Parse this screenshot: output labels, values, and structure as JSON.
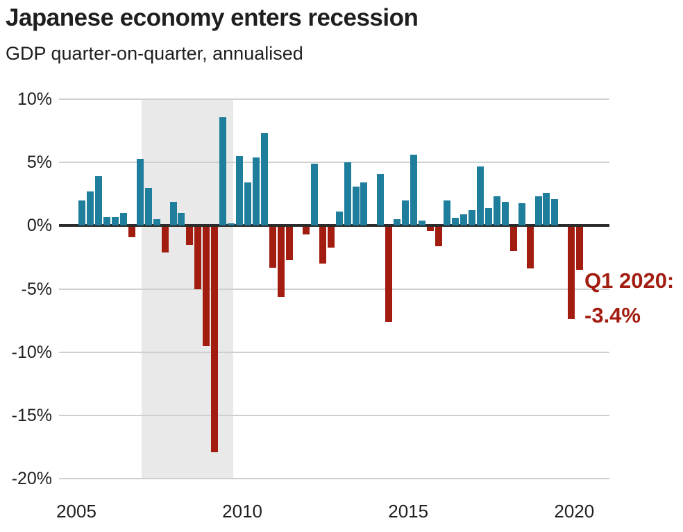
{
  "header": {
    "title": "Japanese economy enters recession",
    "subtitle": "GDP quarter-on-quarter, annualised"
  },
  "annotation": {
    "line1": "Q1 2020:",
    "line2": "-3.4%"
  },
  "colors": {
    "positive_bar": "#1e7e9c",
    "negative_bar": "#a31c10",
    "annotation_text": "#a31c10",
    "recession_band": "#e9e9e9",
    "gridline": "#cfcfcf",
    "zero_line": "#2b2b2b",
    "title_text": "#1f1f1f",
    "axis_text": "#1f1f1f"
  },
  "chart_data": {
    "type": "bar",
    "title": "Japanese economy enters recession",
    "subtitle": "GDP quarter-on-quarter, annualised",
    "unit": "%",
    "ylim": [
      -20,
      10
    ],
    "grid": true,
    "yticks": [
      {
        "value": 10,
        "label": "10%"
      },
      {
        "value": 5,
        "label": "5%"
      },
      {
        "value": 0,
        "label": "0%"
      },
      {
        "value": -5,
        "label": "-5%"
      },
      {
        "value": -10,
        "label": "-10%"
      },
      {
        "value": -15,
        "label": "-15%"
      },
      {
        "value": -20,
        "label": "-20%"
      }
    ],
    "xticks": [
      {
        "year": 2005,
        "label": "2005"
      },
      {
        "year": 2010,
        "label": "2010"
      },
      {
        "year": 2015,
        "label": "2015"
      },
      {
        "year": 2020,
        "label": "2020"
      }
    ],
    "recession_band": {
      "from": "2007 Q1",
      "to": "2009 Q3"
    },
    "quarters": [
      "2005 Q1",
      "2005 Q2",
      "2005 Q3",
      "2005 Q4",
      "2006 Q1",
      "2006 Q2",
      "2006 Q3",
      "2006 Q4",
      "2007 Q1",
      "2007 Q2",
      "2007 Q3",
      "2007 Q4",
      "2008 Q1",
      "2008 Q2",
      "2008 Q3",
      "2008 Q4",
      "2009 Q1",
      "2009 Q2",
      "2009 Q3",
      "2009 Q4",
      "2010 Q1",
      "2010 Q2",
      "2010 Q3",
      "2010 Q4",
      "2011 Q1",
      "2011 Q2",
      "2011 Q3",
      "2011 Q4",
      "2012 Q1",
      "2012 Q2",
      "2012 Q3",
      "2012 Q4",
      "2013 Q1",
      "2013 Q2",
      "2013 Q3",
      "2013 Q4",
      "2014 Q1",
      "2014 Q2",
      "2014 Q3",
      "2014 Q4",
      "2015 Q1",
      "2015 Q2",
      "2015 Q3",
      "2015 Q4",
      "2016 Q1",
      "2016 Q2",
      "2016 Q3",
      "2016 Q4",
      "2017 Q1",
      "2017 Q2",
      "2017 Q3",
      "2017 Q4",
      "2018 Q1",
      "2018 Q2",
      "2018 Q3",
      "2018 Q4",
      "2019 Q1",
      "2019 Q2",
      "2019 Q3",
      "2019 Q4",
      "2020 Q1"
    ],
    "values": [
      2.0,
      2.7,
      3.9,
      0.7,
      0.7,
      1.0,
      -0.8,
      5.3,
      3.0,
      0.5,
      -2.0,
      1.9,
      1.0,
      -1.4,
      -4.9,
      -9.4,
      -17.8,
      8.6,
      0.2,
      5.5,
      3.4,
      5.4,
      7.3,
      -3.2,
      -5.5,
      -2.6,
      0.0,
      -0.6,
      4.9,
      -2.9,
      -1.6,
      1.1,
      5.0,
      3.1,
      3.4,
      0.0,
      4.1,
      -7.5,
      0.5,
      2.0,
      5.6,
      0.4,
      -0.3,
      -1.5,
      2.0,
      0.6,
      0.9,
      1.2,
      4.7,
      1.4,
      2.3,
      1.9,
      -1.9,
      1.8,
      -3.3,
      2.3,
      2.6,
      2.1,
      0.0,
      -7.3,
      -3.4
    ],
    "highlight": {
      "quarter": "2020 Q1",
      "value": -3.4
    }
  }
}
